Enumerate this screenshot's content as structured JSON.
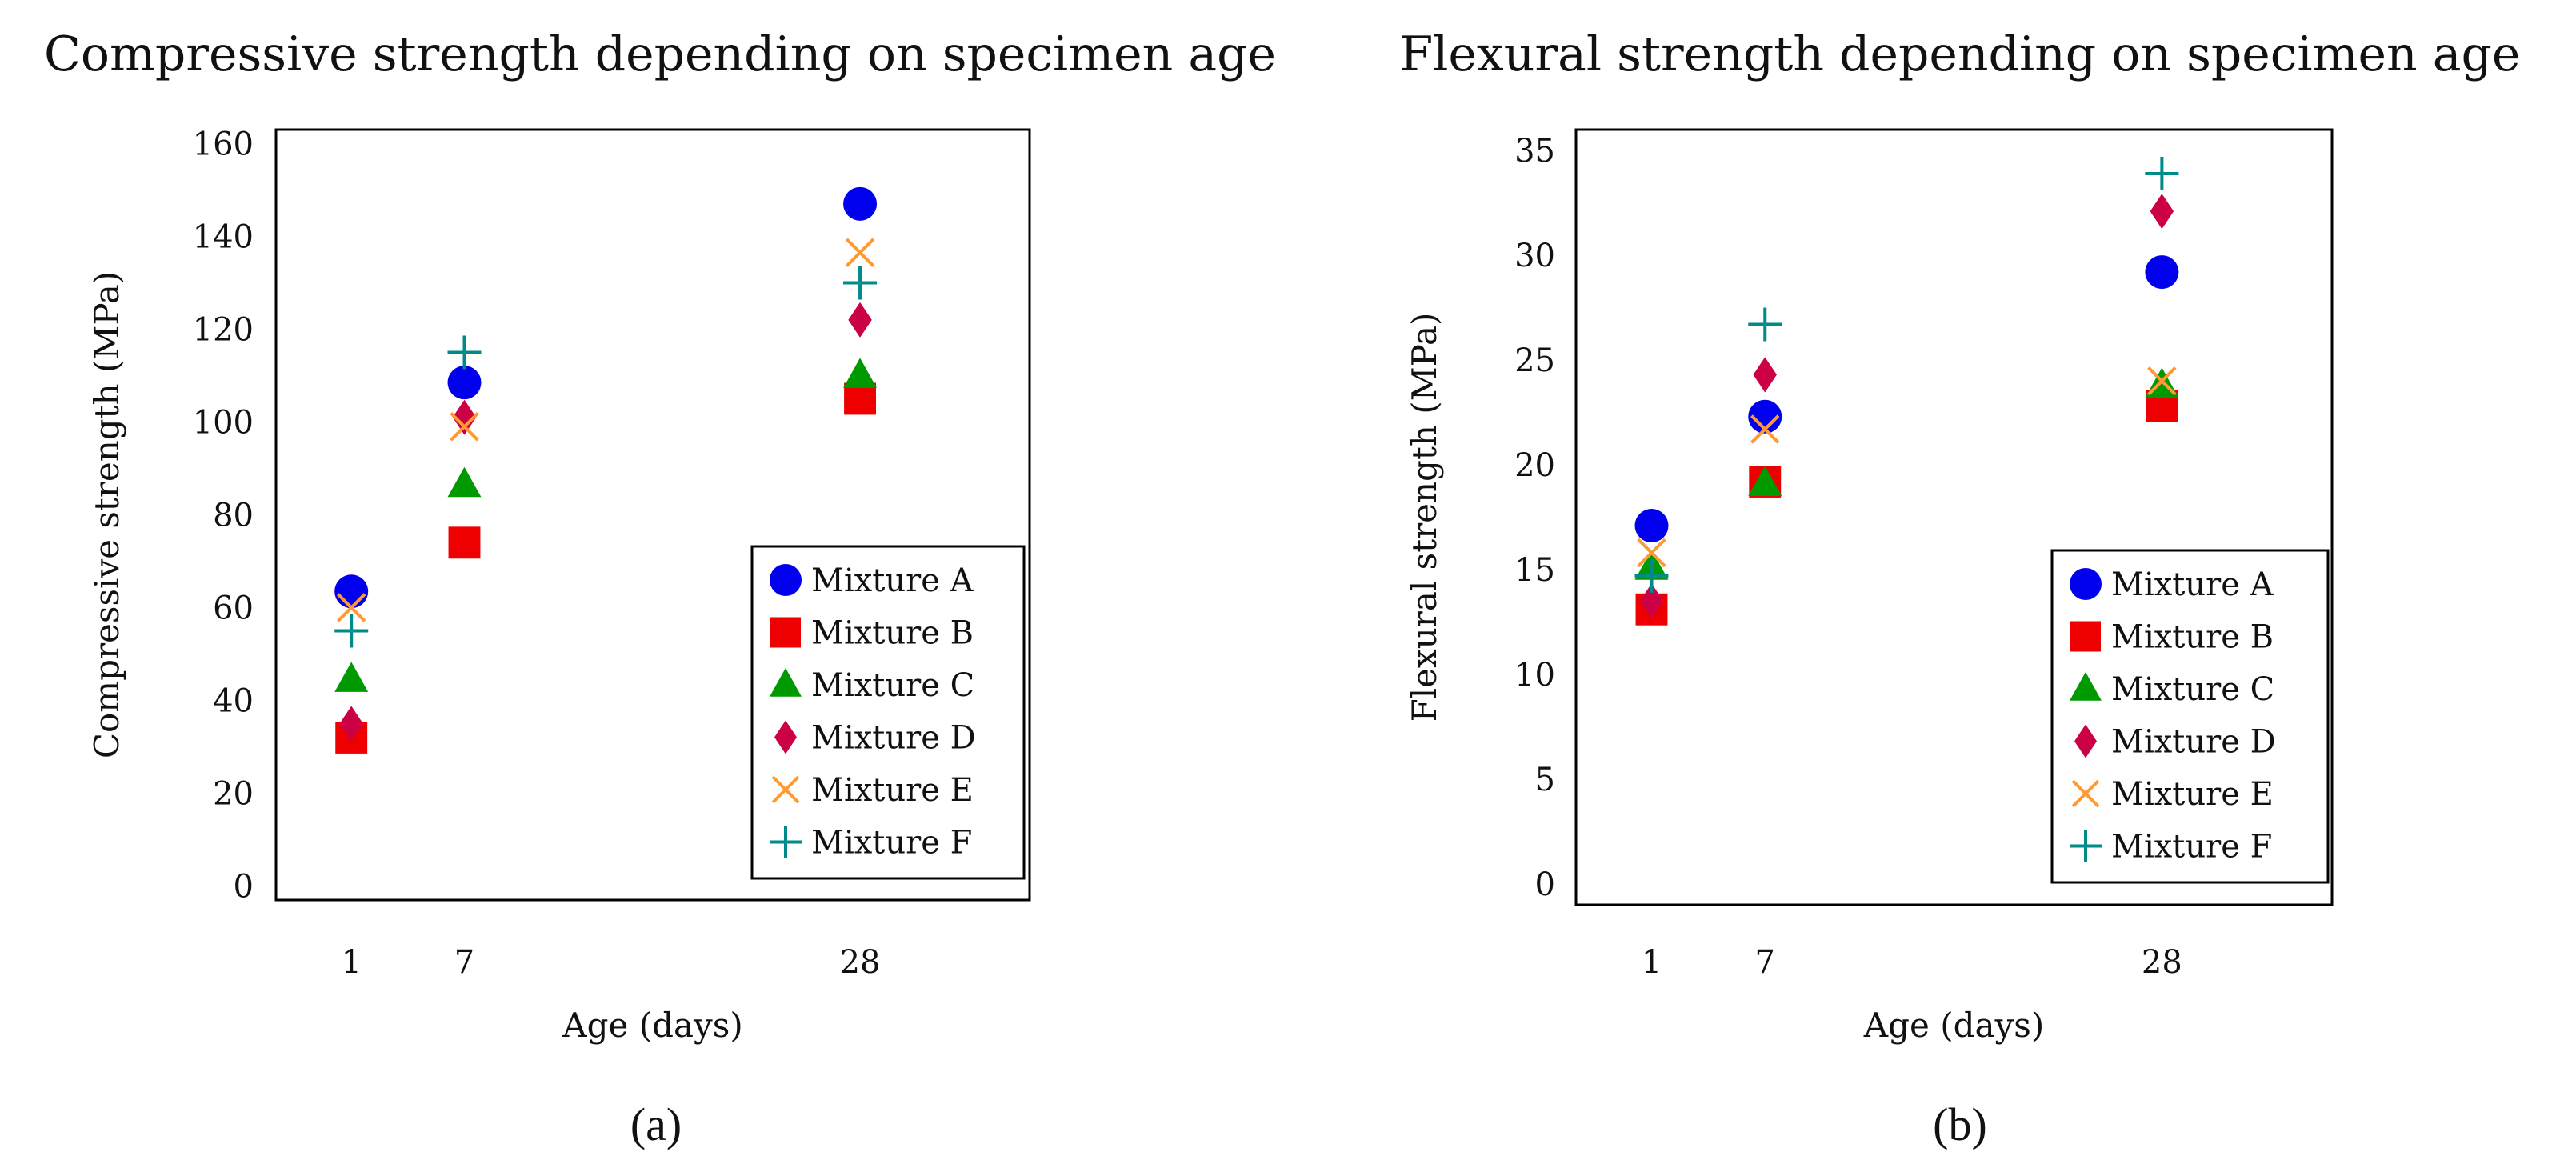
{
  "colors": {
    "A": "#0000ee",
    "B": "#ee0000",
    "C": "#009900",
    "D": "#cc0044",
    "E": "#ff9933",
    "F": "#008b8b"
  },
  "chart_data": [
    {
      "type": "scatter",
      "panel": "(a)",
      "title": "Compressive strength depending on specimen age",
      "xlabel": "Age (days)",
      "ylabel": "Compressive strength (MPa)",
      "xlim": [
        -3,
        37
      ],
      "ylim": [
        -3,
        163
      ],
      "xticks": [
        1,
        7,
        28
      ],
      "yticks": [
        0,
        20,
        40,
        60,
        80,
        100,
        120,
        140,
        160
      ],
      "legend": "bottom-right",
      "x": [
        1,
        7,
        28
      ],
      "series": [
        {
          "name": "Mixture A",
          "key": "A",
          "marker": "circle",
          "values": [
            63.5,
            108.5,
            147
          ]
        },
        {
          "name": "Mixture B",
          "key": "B",
          "marker": "square",
          "values": [
            32,
            74,
            105
          ]
        },
        {
          "name": "Mixture C",
          "key": "C",
          "marker": "triangle",
          "values": [
            44.5,
            86.5,
            110
          ]
        },
        {
          "name": "Mixture D",
          "key": "D",
          "marker": "diamond",
          "values": [
            35,
            101,
            122
          ]
        },
        {
          "name": "Mixture E",
          "key": "E",
          "marker": "x",
          "values": [
            60,
            99,
            136.5
          ]
        },
        {
          "name": "Mixture F",
          "key": "F",
          "marker": "plus",
          "values": [
            55,
            115,
            130
          ]
        }
      ]
    },
    {
      "type": "scatter",
      "panel": "(b)",
      "title": "Flexural strength depending on specimen age",
      "xlabel": "Age (days)",
      "ylabel": "Flexural strength (MPa)",
      "xlim": [
        -3,
        37
      ],
      "ylim": [
        -1,
        36
      ],
      "xticks": [
        1,
        7,
        28
      ],
      "yticks": [
        0,
        5,
        10,
        15,
        20,
        25,
        30,
        35
      ],
      "legend": "bottom-right",
      "x": [
        1,
        7,
        28
      ],
      "series": [
        {
          "name": "Mixture A",
          "key": "A",
          "marker": "circle",
          "values": [
            17.1,
            22.3,
            29.2
          ]
        },
        {
          "name": "Mixture B",
          "key": "B",
          "marker": "square",
          "values": [
            13.1,
            19.2,
            22.8
          ]
        },
        {
          "name": "Mixture C",
          "key": "C",
          "marker": "triangle",
          "values": [
            15.1,
            19.1,
            23.8
          ]
        },
        {
          "name": "Mixture D",
          "key": "D",
          "marker": "diamond",
          "values": [
            13.5,
            24.3,
            32.1
          ]
        },
        {
          "name": "Mixture E",
          "key": "E",
          "marker": "x",
          "values": [
            15.8,
            21.7,
            24
          ]
        },
        {
          "name": "Mixture F",
          "key": "F",
          "marker": "plus",
          "values": [
            14.7,
            26.7,
            33.9
          ]
        }
      ]
    }
  ]
}
